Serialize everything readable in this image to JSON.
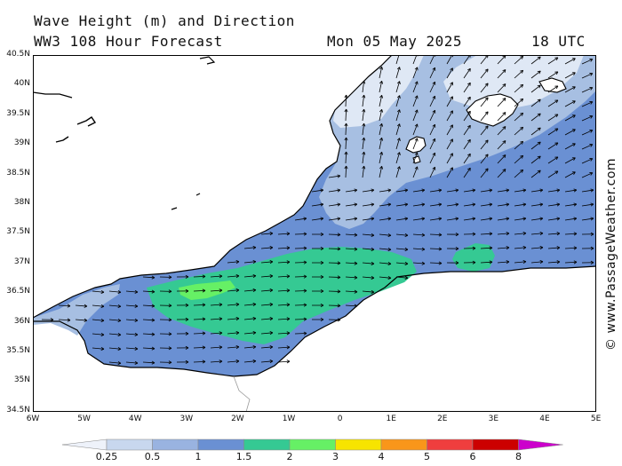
{
  "header": {
    "title": "Wave Height (m) and Direction",
    "model": "WW3 108 Hour Forecast",
    "date": "Mon 05 May 2025",
    "time": "18 UTC"
  },
  "credit": "© www.PassageWeather.com",
  "map": {
    "lat_labels": [
      "40.5N",
      "40N",
      "39.5N",
      "39N",
      "38.5N",
      "38N",
      "37.5N",
      "37N",
      "36.5N",
      "36N",
      "35.5N",
      "35N",
      "34.5N"
    ],
    "lon_labels": [
      "6W",
      "5W",
      "4W",
      "3W",
      "2W",
      "1W",
      "0",
      "1E",
      "2E",
      "3E",
      "4E",
      "5E"
    ],
    "wave_direction": "eastward flow through Alboran Sea, north/north-east over Balearic Sea",
    "colors": {
      "land": "#ffffff",
      "c0_25": "#dfe8f5",
      "c0_5": "#a7bfe2",
      "c1": "#6a90d3",
      "c1_5": "#35c993",
      "c2": "#66f065"
    }
  },
  "colorbar": {
    "labels": [
      "0.25",
      "0.5",
      "1",
      "1.5",
      "2",
      "3",
      "4",
      "5",
      "6",
      "8"
    ],
    "colors": [
      "#eef2fa",
      "#c8d7ee",
      "#99b3e0",
      "#6a90d3",
      "#35c993",
      "#66f065",
      "#f7e400",
      "#f9961a",
      "#ef3e3e",
      "#cc0000",
      "#cc00cc"
    ]
  }
}
